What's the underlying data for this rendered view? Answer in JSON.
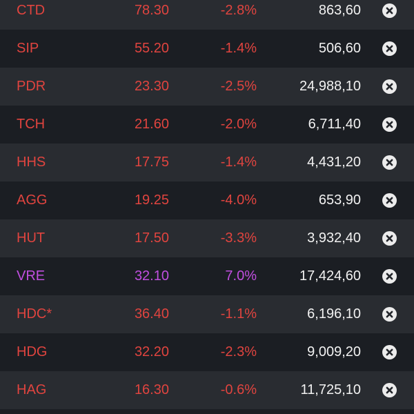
{
  "watchlist": {
    "rows": [
      {
        "symbol": "CTD",
        "price": "78.30",
        "change": "-2.8%",
        "volume": "863,60",
        "status": "down"
      },
      {
        "symbol": "SIP",
        "price": "55.20",
        "change": "-1.4%",
        "volume": "506,60",
        "status": "down"
      },
      {
        "symbol": "PDR",
        "price": "23.30",
        "change": "-2.5%",
        "volume": "24,988,10",
        "status": "down"
      },
      {
        "symbol": "TCH",
        "price": "21.60",
        "change": "-2.0%",
        "volume": "6,711,40",
        "status": "down"
      },
      {
        "symbol": "HHS",
        "price": "17.75",
        "change": "-1.4%",
        "volume": "4,431,20",
        "status": "down"
      },
      {
        "symbol": "AGG",
        "price": "19.25",
        "change": "-4.0%",
        "volume": "653,90",
        "status": "down"
      },
      {
        "symbol": "HUT",
        "price": "17.50",
        "change": "-3.3%",
        "volume": "3,932,40",
        "status": "down"
      },
      {
        "symbol": "VRE",
        "price": "32.10",
        "change": "7.0%",
        "volume": "17,424,60",
        "status": "ceiling"
      },
      {
        "symbol": "HDC*",
        "price": "36.40",
        "change": "-1.1%",
        "volume": "6,196,10",
        "status": "down"
      },
      {
        "symbol": "HDG",
        "price": "32.20",
        "change": "-2.3%",
        "volume": "9,009,20",
        "status": "down"
      },
      {
        "symbol": "HAG",
        "price": "16.30",
        "change": "-0.6%",
        "volume": "11,725,10",
        "status": "down"
      }
    ],
    "remove_icon": "close-circle-icon"
  },
  "colors": {
    "down": "#e0443f",
    "ceiling": "#c14fe0",
    "volume": "#f2f2f2",
    "row_alt": "#292c31",
    "row_base": "#1b1e23"
  }
}
